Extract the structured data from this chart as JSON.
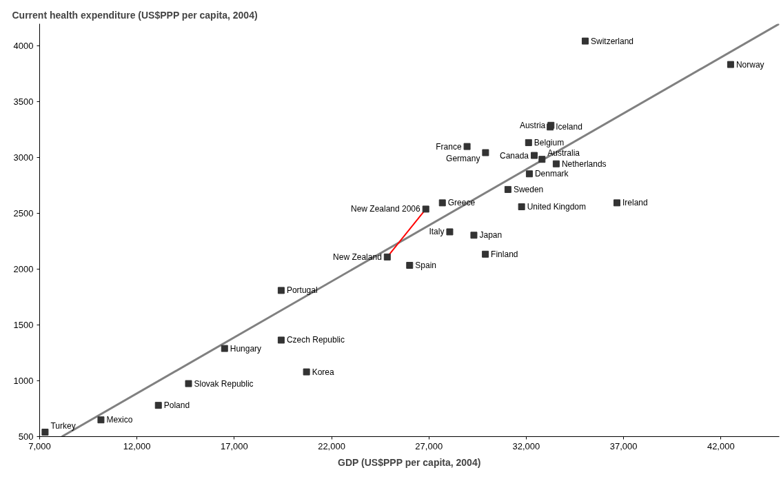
{
  "chart_data": {
    "type": "scatter",
    "ylabel": "Current health expenditure (US$PPP per capita, 2004)",
    "xlabel": "GDP (US$PPP per capita, 2004)",
    "xlim": [
      7000,
      45000
    ],
    "ylim": [
      500,
      4200
    ],
    "xticks": [
      {
        "value": 7000,
        "label": "7,000"
      },
      {
        "value": 12000,
        "label": "12,000"
      },
      {
        "value": 17000,
        "label": "17,000"
      },
      {
        "value": 22000,
        "label": "22,000"
      },
      {
        "value": 27000,
        "label": "27,000"
      },
      {
        "value": 32000,
        "label": "32,000"
      },
      {
        "value": 37000,
        "label": "37,000"
      },
      {
        "value": 42000,
        "label": "42,000"
      }
    ],
    "yticks": [
      500,
      1000,
      1500,
      2000,
      2500,
      3000,
      3500,
      4000
    ],
    "grid": false,
    "marker": "square",
    "series": [
      {
        "type": "line",
        "marker": "none",
        "color": "#808080",
        "x": [
          8140,
          45000
        ],
        "values": [
          500,
          4200
        ]
      },
      {
        "type": "line",
        "marker": "none",
        "color": "#ff0000",
        "x": [
          24860,
          26840
        ],
        "values": [
          2110,
          2539
        ]
      },
      {
        "name": "New Zealand 2006",
        "color": "#333333",
        "x": [
          26840
        ],
        "values": [
          2539
        ]
      },
      {
        "name": "Turkey",
        "color": "#333333",
        "x": [
          7280
        ],
        "values": [
          540
        ]
      },
      {
        "name": "Mexico",
        "color": "#333333",
        "x": [
          10150
        ],
        "values": [
          650
        ]
      },
      {
        "name": "Poland",
        "color": "#333333",
        "x": [
          13100
        ],
        "values": [
          780
        ]
      },
      {
        "name": "Slovak Republic",
        "color": "#333333",
        "x": [
          14650
        ],
        "values": [
          975
        ]
      },
      {
        "name": "Hungary",
        "color": "#333333",
        "x": [
          16500
        ],
        "values": [
          1290
        ]
      },
      {
        "name": "Czech Republic",
        "color": "#333333",
        "x": [
          19410
        ],
        "values": [
          1365
        ]
      },
      {
        "name": "Portugal",
        "color": "#333333",
        "x": [
          19410
        ],
        "values": [
          1810
        ]
      },
      {
        "name": "Korea",
        "color": "#333333",
        "x": [
          20710
        ],
        "values": [
          1080
        ]
      },
      {
        "name": "New Zealand",
        "color": "#333333",
        "x": [
          24860
        ],
        "values": [
          2110
        ]
      },
      {
        "name": "Spain",
        "color": "#333333",
        "x": [
          26010
        ],
        "values": [
          2035
        ]
      },
      {
        "name": "Finland",
        "color": "#333333",
        "x": [
          29900
        ],
        "values": [
          2135
        ]
      },
      {
        "name": "Italy",
        "color": "#333333",
        "x": [
          28070
        ],
        "values": [
          2335
        ]
      },
      {
        "name": "Japan",
        "color": "#333333",
        "x": [
          29310
        ],
        "values": [
          2305
        ]
      },
      {
        "name": "Greece",
        "color": "#333333",
        "x": [
          27690
        ],
        "values": [
          2595
        ]
      },
      {
        "name": "United Kingdom",
        "color": "#333333",
        "x": [
          31760
        ],
        "values": [
          2560
        ]
      },
      {
        "name": "Ireland",
        "color": "#333333",
        "x": [
          36660
        ],
        "values": [
          2595
        ]
      },
      {
        "name": "Sweden",
        "color": "#333333",
        "x": [
          31060
        ],
        "values": [
          2715
        ]
      },
      {
        "name": "Denmark",
        "color": "#333333",
        "x": [
          32160
        ],
        "values": [
          2855
        ]
      },
      {
        "name": "Netherlands",
        "color": "#333333",
        "x": [
          33540
        ],
        "values": [
          2945
        ]
      },
      {
        "name": "Australia",
        "color": "#333333",
        "x": [
          32810
        ],
        "values": [
          2985
        ]
      },
      {
        "name": "Canada",
        "color": "#333333",
        "x": [
          32410
        ],
        "values": [
          3020
        ]
      },
      {
        "name": "Belgium",
        "color": "#333333",
        "x": [
          32120
        ],
        "values": [
          3135
        ]
      },
      {
        "name": "Germany",
        "color": "#333333",
        "x": [
          29910
        ],
        "values": [
          3045
        ]
      },
      {
        "name": "France",
        "color": "#333333",
        "x": [
          28960
        ],
        "values": [
          3100
        ]
      },
      {
        "name": "Iceland",
        "color": "#333333",
        "x": [
          33230
        ],
        "values": [
          3275
        ]
      },
      {
        "name": "Austria",
        "color": "#333333",
        "x": [
          33270
        ],
        "values": [
          3290
        ]
      },
      {
        "name": "Switzerland",
        "color": "#333333",
        "x": [
          35030
        ],
        "values": [
          4045
        ]
      },
      {
        "name": "Norway",
        "color": "#333333",
        "x": [
          42500
        ],
        "values": [
          3835
        ]
      }
    ]
  }
}
